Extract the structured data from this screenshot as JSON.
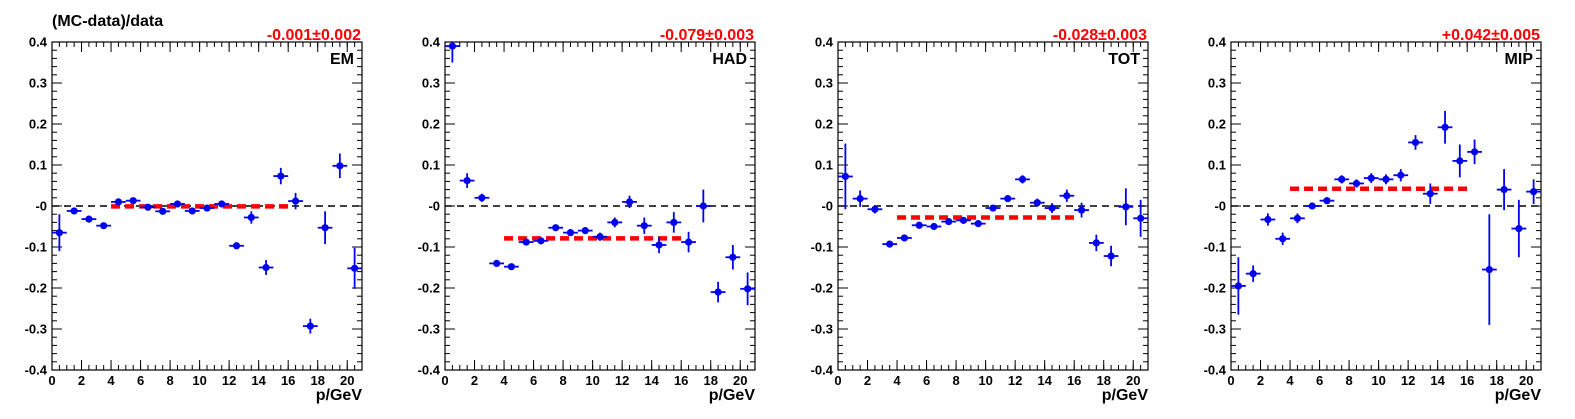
{
  "figure_title": "(MC-data)/data",
  "colors": {
    "points": "#0000ee",
    "fit": "#ff0000",
    "zero_line": "#000000",
    "frame": "#000000"
  },
  "chart_data": [
    {
      "type": "scatter",
      "panel_label": "EM",
      "fit_label": "-0.001±0.002",
      "xlabel": "p/GeV",
      "ylabel": "",
      "xlim": [
        0,
        21
      ],
      "ylim": [
        -0.4,
        0.4
      ],
      "xticks": [
        "0",
        "2",
        "4",
        "6",
        "8",
        "10",
        "12",
        "14",
        "16",
        "18",
        "20"
      ],
      "yticks": [
        "-0.4",
        "-0.3",
        "-0.2",
        "-0.1",
        "-0",
        "0.1",
        "0.2",
        "0.3",
        "0.4"
      ],
      "zero_line": 0,
      "fit": {
        "value": -0.001,
        "x_range": [
          4,
          16
        ]
      },
      "points": [
        {
          "x": 0.5,
          "y": -0.065,
          "yerr": 0.045
        },
        {
          "x": 1.5,
          "y": -0.012,
          "yerr": 0.008
        },
        {
          "x": 2.5,
          "y": -0.032,
          "yerr": 0.006
        },
        {
          "x": 3.5,
          "y": -0.048,
          "yerr": 0.006
        },
        {
          "x": 4.5,
          "y": 0.01,
          "yerr": 0.006
        },
        {
          "x": 5.5,
          "y": 0.013,
          "yerr": 0.006
        },
        {
          "x": 6.5,
          "y": -0.003,
          "yerr": 0.006
        },
        {
          "x": 7.5,
          "y": -0.013,
          "yerr": 0.006
        },
        {
          "x": 8.5,
          "y": 0.005,
          "yerr": 0.006
        },
        {
          "x": 9.5,
          "y": -0.012,
          "yerr": 0.006
        },
        {
          "x": 10.5,
          "y": -0.005,
          "yerr": 0.006
        },
        {
          "x": 11.5,
          "y": 0.005,
          "yerr": 0.006
        },
        {
          "x": 12.5,
          "y": -0.097,
          "yerr": 0.008
        },
        {
          "x": 13.5,
          "y": -0.028,
          "yerr": 0.015
        },
        {
          "x": 14.5,
          "y": -0.15,
          "yerr": 0.018
        },
        {
          "x": 15.5,
          "y": 0.073,
          "yerr": 0.02
        },
        {
          "x": 16.5,
          "y": 0.012,
          "yerr": 0.02
        },
        {
          "x": 17.5,
          "y": -0.293,
          "yerr": 0.018
        },
        {
          "x": 18.5,
          "y": -0.053,
          "yerr": 0.04
        },
        {
          "x": 19.5,
          "y": 0.098,
          "yerr": 0.03
        },
        {
          "x": 20.5,
          "y": -0.152,
          "yerr": 0.05
        }
      ]
    },
    {
      "type": "scatter",
      "panel_label": "HAD",
      "fit_label": "-0.079±0.003",
      "xlabel": "p/GeV",
      "ylabel": "",
      "xlim": [
        0,
        21
      ],
      "ylim": [
        -0.4,
        0.4
      ],
      "xticks": [
        "0",
        "2",
        "4",
        "6",
        "8",
        "10",
        "12",
        "14",
        "16",
        "18",
        "20"
      ],
      "yticks": [
        "-0.4",
        "-0.3",
        "-0.2",
        "-0.1",
        "-0",
        "0.1",
        "0.2",
        "0.3",
        "0.4"
      ],
      "zero_line": 0,
      "fit": {
        "value": -0.079,
        "x_range": [
          4,
          16
        ]
      },
      "points": [
        {
          "x": 0.5,
          "y": 0.39,
          "yerr": 0.04
        },
        {
          "x": 1.5,
          "y": 0.062,
          "yerr": 0.018
        },
        {
          "x": 2.5,
          "y": 0.02,
          "yerr": 0.01
        },
        {
          "x": 3.5,
          "y": -0.14,
          "yerr": 0.006
        },
        {
          "x": 4.5,
          "y": -0.148,
          "yerr": 0.006
        },
        {
          "x": 5.5,
          "y": -0.088,
          "yerr": 0.006
        },
        {
          "x": 6.5,
          "y": -0.085,
          "yerr": 0.006
        },
        {
          "x": 7.5,
          "y": -0.053,
          "yerr": 0.006
        },
        {
          "x": 8.5,
          "y": -0.065,
          "yerr": 0.008
        },
        {
          "x": 9.5,
          "y": -0.06,
          "yerr": 0.008
        },
        {
          "x": 10.5,
          "y": -0.075,
          "yerr": 0.01
        },
        {
          "x": 11.5,
          "y": -0.04,
          "yerr": 0.012
        },
        {
          "x": 12.5,
          "y": 0.01,
          "yerr": 0.015
        },
        {
          "x": 13.5,
          "y": -0.048,
          "yerr": 0.02
        },
        {
          "x": 14.5,
          "y": -0.095,
          "yerr": 0.02
        },
        {
          "x": 15.5,
          "y": -0.04,
          "yerr": 0.025
        },
        {
          "x": 16.5,
          "y": -0.088,
          "yerr": 0.025
        },
        {
          "x": 17.5,
          "y": 0.0,
          "yerr": 0.04
        },
        {
          "x": 18.5,
          "y": -0.21,
          "yerr": 0.025
        },
        {
          "x": 19.5,
          "y": -0.125,
          "yerr": 0.03
        },
        {
          "x": 20.5,
          "y": -0.202,
          "yerr": 0.04
        }
      ]
    },
    {
      "type": "scatter",
      "panel_label": "TOT",
      "fit_label": "-0.028±0.003",
      "xlabel": "p/GeV",
      "ylabel": "",
      "xlim": [
        0,
        21
      ],
      "ylim": [
        -0.4,
        0.4
      ],
      "xticks": [
        "0",
        "2",
        "4",
        "6",
        "8",
        "10",
        "12",
        "14",
        "16",
        "18",
        "20"
      ],
      "yticks": [
        "-0.4",
        "-0.3",
        "-0.2",
        "-0.1",
        "-0",
        "0.1",
        "0.2",
        "0.3",
        "0.4"
      ],
      "zero_line": 0,
      "fit": {
        "value": -0.028,
        "x_range": [
          4,
          16
        ]
      },
      "points": [
        {
          "x": 0.5,
          "y": 0.072,
          "yerr": 0.08
        },
        {
          "x": 1.5,
          "y": 0.018,
          "yerr": 0.02
        },
        {
          "x": 2.5,
          "y": -0.008,
          "yerr": 0.01
        },
        {
          "x": 3.5,
          "y": -0.093,
          "yerr": 0.008
        },
        {
          "x": 4.5,
          "y": -0.078,
          "yerr": 0.006
        },
        {
          "x": 5.5,
          "y": -0.047,
          "yerr": 0.006
        },
        {
          "x": 6.5,
          "y": -0.05,
          "yerr": 0.006
        },
        {
          "x": 7.5,
          "y": -0.038,
          "yerr": 0.006
        },
        {
          "x": 8.5,
          "y": -0.035,
          "yerr": 0.006
        },
        {
          "x": 9.5,
          "y": -0.043,
          "yerr": 0.006
        },
        {
          "x": 10.5,
          "y": -0.005,
          "yerr": 0.006
        },
        {
          "x": 11.5,
          "y": 0.018,
          "yerr": 0.008
        },
        {
          "x": 12.5,
          "y": 0.065,
          "yerr": 0.01
        },
        {
          "x": 13.5,
          "y": 0.008,
          "yerr": 0.01
        },
        {
          "x": 14.5,
          "y": -0.005,
          "yerr": 0.012
        },
        {
          "x": 15.5,
          "y": 0.025,
          "yerr": 0.015
        },
        {
          "x": 16.5,
          "y": -0.01,
          "yerr": 0.018
        },
        {
          "x": 17.5,
          "y": -0.09,
          "yerr": 0.02
        },
        {
          "x": 18.5,
          "y": -0.122,
          "yerr": 0.025
        },
        {
          "x": 19.5,
          "y": -0.002,
          "yerr": 0.045
        },
        {
          "x": 20.5,
          "y": -0.03,
          "yerr": 0.045
        }
      ]
    },
    {
      "type": "scatter",
      "panel_label": "MIP",
      "fit_label": "+0.042±0.005",
      "xlabel": "p/GeV",
      "ylabel": "",
      "xlim": [
        0,
        21
      ],
      "ylim": [
        -0.4,
        0.4
      ],
      "xticks": [
        "0",
        "2",
        "4",
        "6",
        "8",
        "10",
        "12",
        "14",
        "16",
        "18",
        "20"
      ],
      "yticks": [
        "-0.4",
        "-0.3",
        "-0.2",
        "-0.1",
        "-0",
        "0.1",
        "0.2",
        "0.3",
        "0.4"
      ],
      "zero_line": 0,
      "fit": {
        "value": 0.042,
        "x_range": [
          4,
          16
        ]
      },
      "points": [
        {
          "x": 0.5,
          "y": -0.195,
          "yerr": 0.07
        },
        {
          "x": 1.5,
          "y": -0.165,
          "yerr": 0.02
        },
        {
          "x": 2.5,
          "y": -0.033,
          "yerr": 0.015
        },
        {
          "x": 3.5,
          "y": -0.08,
          "yerr": 0.015
        },
        {
          "x": 4.5,
          "y": -0.03,
          "yerr": 0.012
        },
        {
          "x": 5.5,
          "y": 0.0,
          "yerr": 0.008
        },
        {
          "x": 6.5,
          "y": 0.013,
          "yerr": 0.008
        },
        {
          "x": 7.5,
          "y": 0.065,
          "yerr": 0.01
        },
        {
          "x": 8.5,
          "y": 0.055,
          "yerr": 0.01
        },
        {
          "x": 9.5,
          "y": 0.068,
          "yerr": 0.012
        },
        {
          "x": 10.5,
          "y": 0.065,
          "yerr": 0.012
        },
        {
          "x": 11.5,
          "y": 0.075,
          "yerr": 0.015
        },
        {
          "x": 12.5,
          "y": 0.155,
          "yerr": 0.018
        },
        {
          "x": 13.5,
          "y": 0.03,
          "yerr": 0.025
        },
        {
          "x": 14.5,
          "y": 0.192,
          "yerr": 0.04
        },
        {
          "x": 15.5,
          "y": 0.11,
          "yerr": 0.04
        },
        {
          "x": 16.5,
          "y": 0.132,
          "yerr": 0.03
        },
        {
          "x": 17.5,
          "y": -0.155,
          "yerr": 0.135
        },
        {
          "x": 18.5,
          "y": 0.04,
          "yerr": 0.05
        },
        {
          "x": 19.5,
          "y": -0.055,
          "yerr": 0.07
        },
        {
          "x": 20.5,
          "y": 0.035,
          "yerr": 0.03
        }
      ]
    }
  ]
}
